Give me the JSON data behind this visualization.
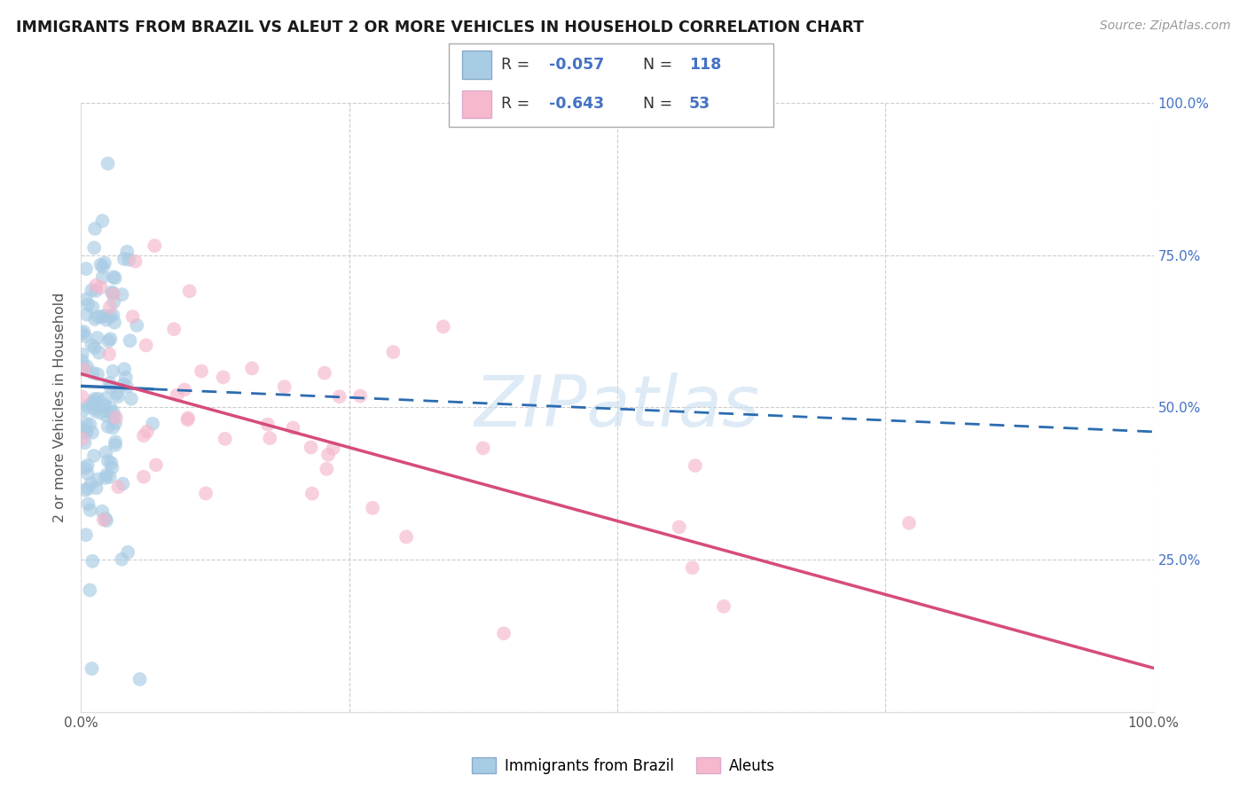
{
  "title": "IMMIGRANTS FROM BRAZIL VS ALEUT 2 OR MORE VEHICLES IN HOUSEHOLD CORRELATION CHART",
  "source": "Source: ZipAtlas.com",
  "ylabel": "2 or more Vehicles in Household",
  "legend1_R": "-0.057",
  "legend1_N": "118",
  "legend2_R": "-0.643",
  "legend2_N": "53",
  "blue_scatter_color": "#a8cce4",
  "pink_scatter_color": "#f5b8cc",
  "blue_line_solid_color": "#2b6cb0",
  "pink_line_color": "#d64c7a",
  "watermark_color": "#c8dff0",
  "watermark_text": "ZIPatlas",
  "background_color": "#ffffff",
  "grid_color": "#cccccc",
  "right_axis_color": "#4472c4",
  "title_color": "#1a1a1a",
  "source_color": "#999999",
  "legend_R_color": "#4472c4",
  "legend_N_color": "#4472c4",
  "legend_label_color": "#333333",
  "xlim": [
    0.0,
    1.0
  ],
  "ylim": [
    0.0,
    1.0
  ],
  "brazil_R": -0.057,
  "aleut_R": -0.643,
  "brazil_N": 118,
  "aleut_N": 53,
  "brazil_line_y0": 0.535,
  "brazil_line_y1": 0.46,
  "aleut_line_y0": 0.555,
  "aleut_line_y1": 0.072
}
